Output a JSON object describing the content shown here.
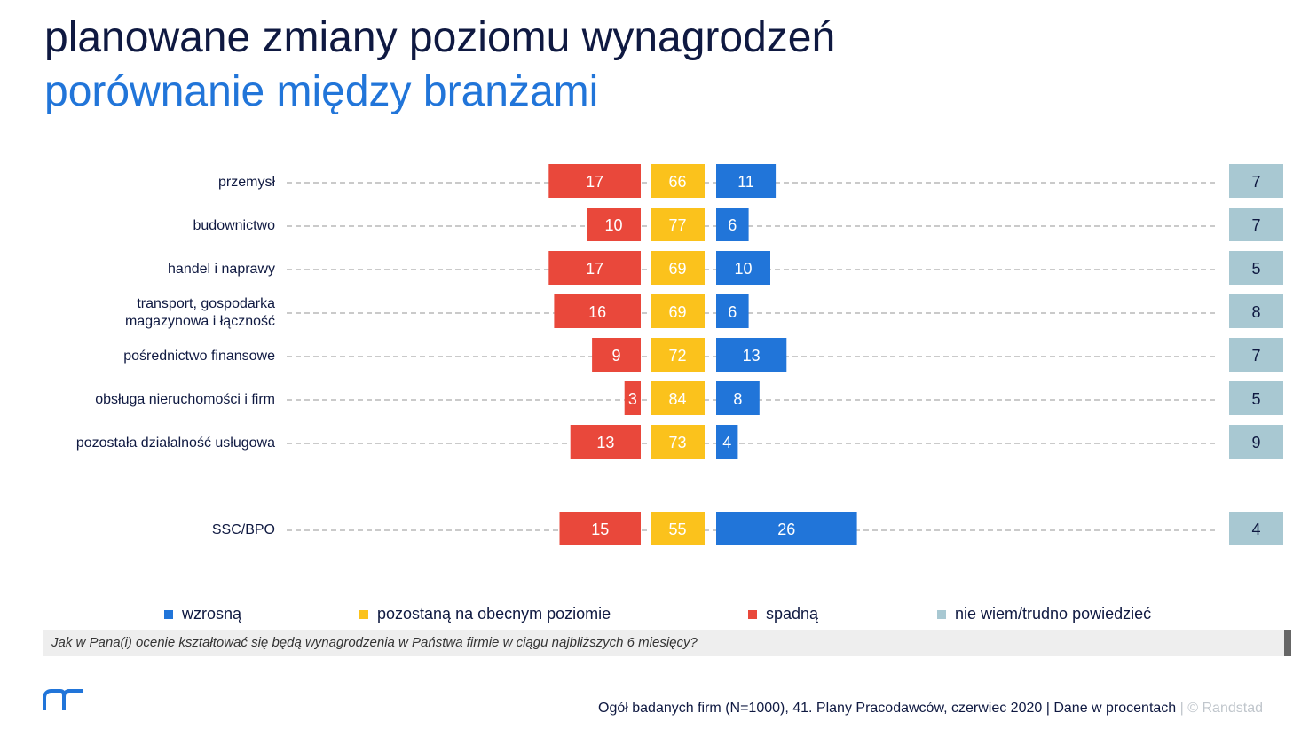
{
  "header": {
    "title": "planowane zmiany poziomu wynagrodzeń",
    "subtitle": "porównanie między branżami"
  },
  "colors": {
    "spadna": "#e9483b",
    "pozostana": "#fbc21c",
    "wzrosna": "#2175d9",
    "nie_wiem": "#a8c8d2",
    "title": "#0f1941",
    "accent": "#2175d9"
  },
  "chart_data": {
    "type": "bar",
    "categories": [
      [
        "przemysł"
      ],
      [
        "budownictwo"
      ],
      [
        "handel i naprawy"
      ],
      [
        "transport, gospodarka",
        "magazynowa i łączność"
      ],
      [
        "pośrednictwo finansowe"
      ],
      [
        "obsługa nieruchomości i firm"
      ],
      [
        "pozostała działalność usługowa"
      ],
      [
        "SSC/BPO"
      ]
    ],
    "series": [
      {
        "name": "spadną",
        "values": [
          17,
          10,
          17,
          16,
          9,
          3,
          13,
          15
        ]
      },
      {
        "name": "pozostaną na obecnym poziomie",
        "values": [
          66,
          77,
          69,
          69,
          72,
          84,
          73,
          55
        ]
      },
      {
        "name": "wzrosną",
        "values": [
          11,
          6,
          10,
          6,
          13,
          8,
          4,
          26
        ]
      },
      {
        "name": "nie wiem/trudno powiedzieć",
        "values": [
          7,
          7,
          5,
          8,
          7,
          5,
          9,
          4
        ]
      }
    ],
    "legend": [
      "wzrosną",
      "pozostaną na obecnym poziomie",
      "spadną",
      "nie wiem/trudno powiedzieć"
    ],
    "legend_position": "bottom"
  },
  "question": "Jak w Pana(i) ocenie kształtować się będą wynagrodzenia w Państwa firmie w ciągu najbliższych 6 miesięcy?",
  "footer": {
    "source": "Ogół badanych firm (N=1000), 41. Plany Pracodawców, czerwiec 2020",
    "units": "| Dane w procentach",
    "separator": "|",
    "copyright": "© Randstad"
  }
}
